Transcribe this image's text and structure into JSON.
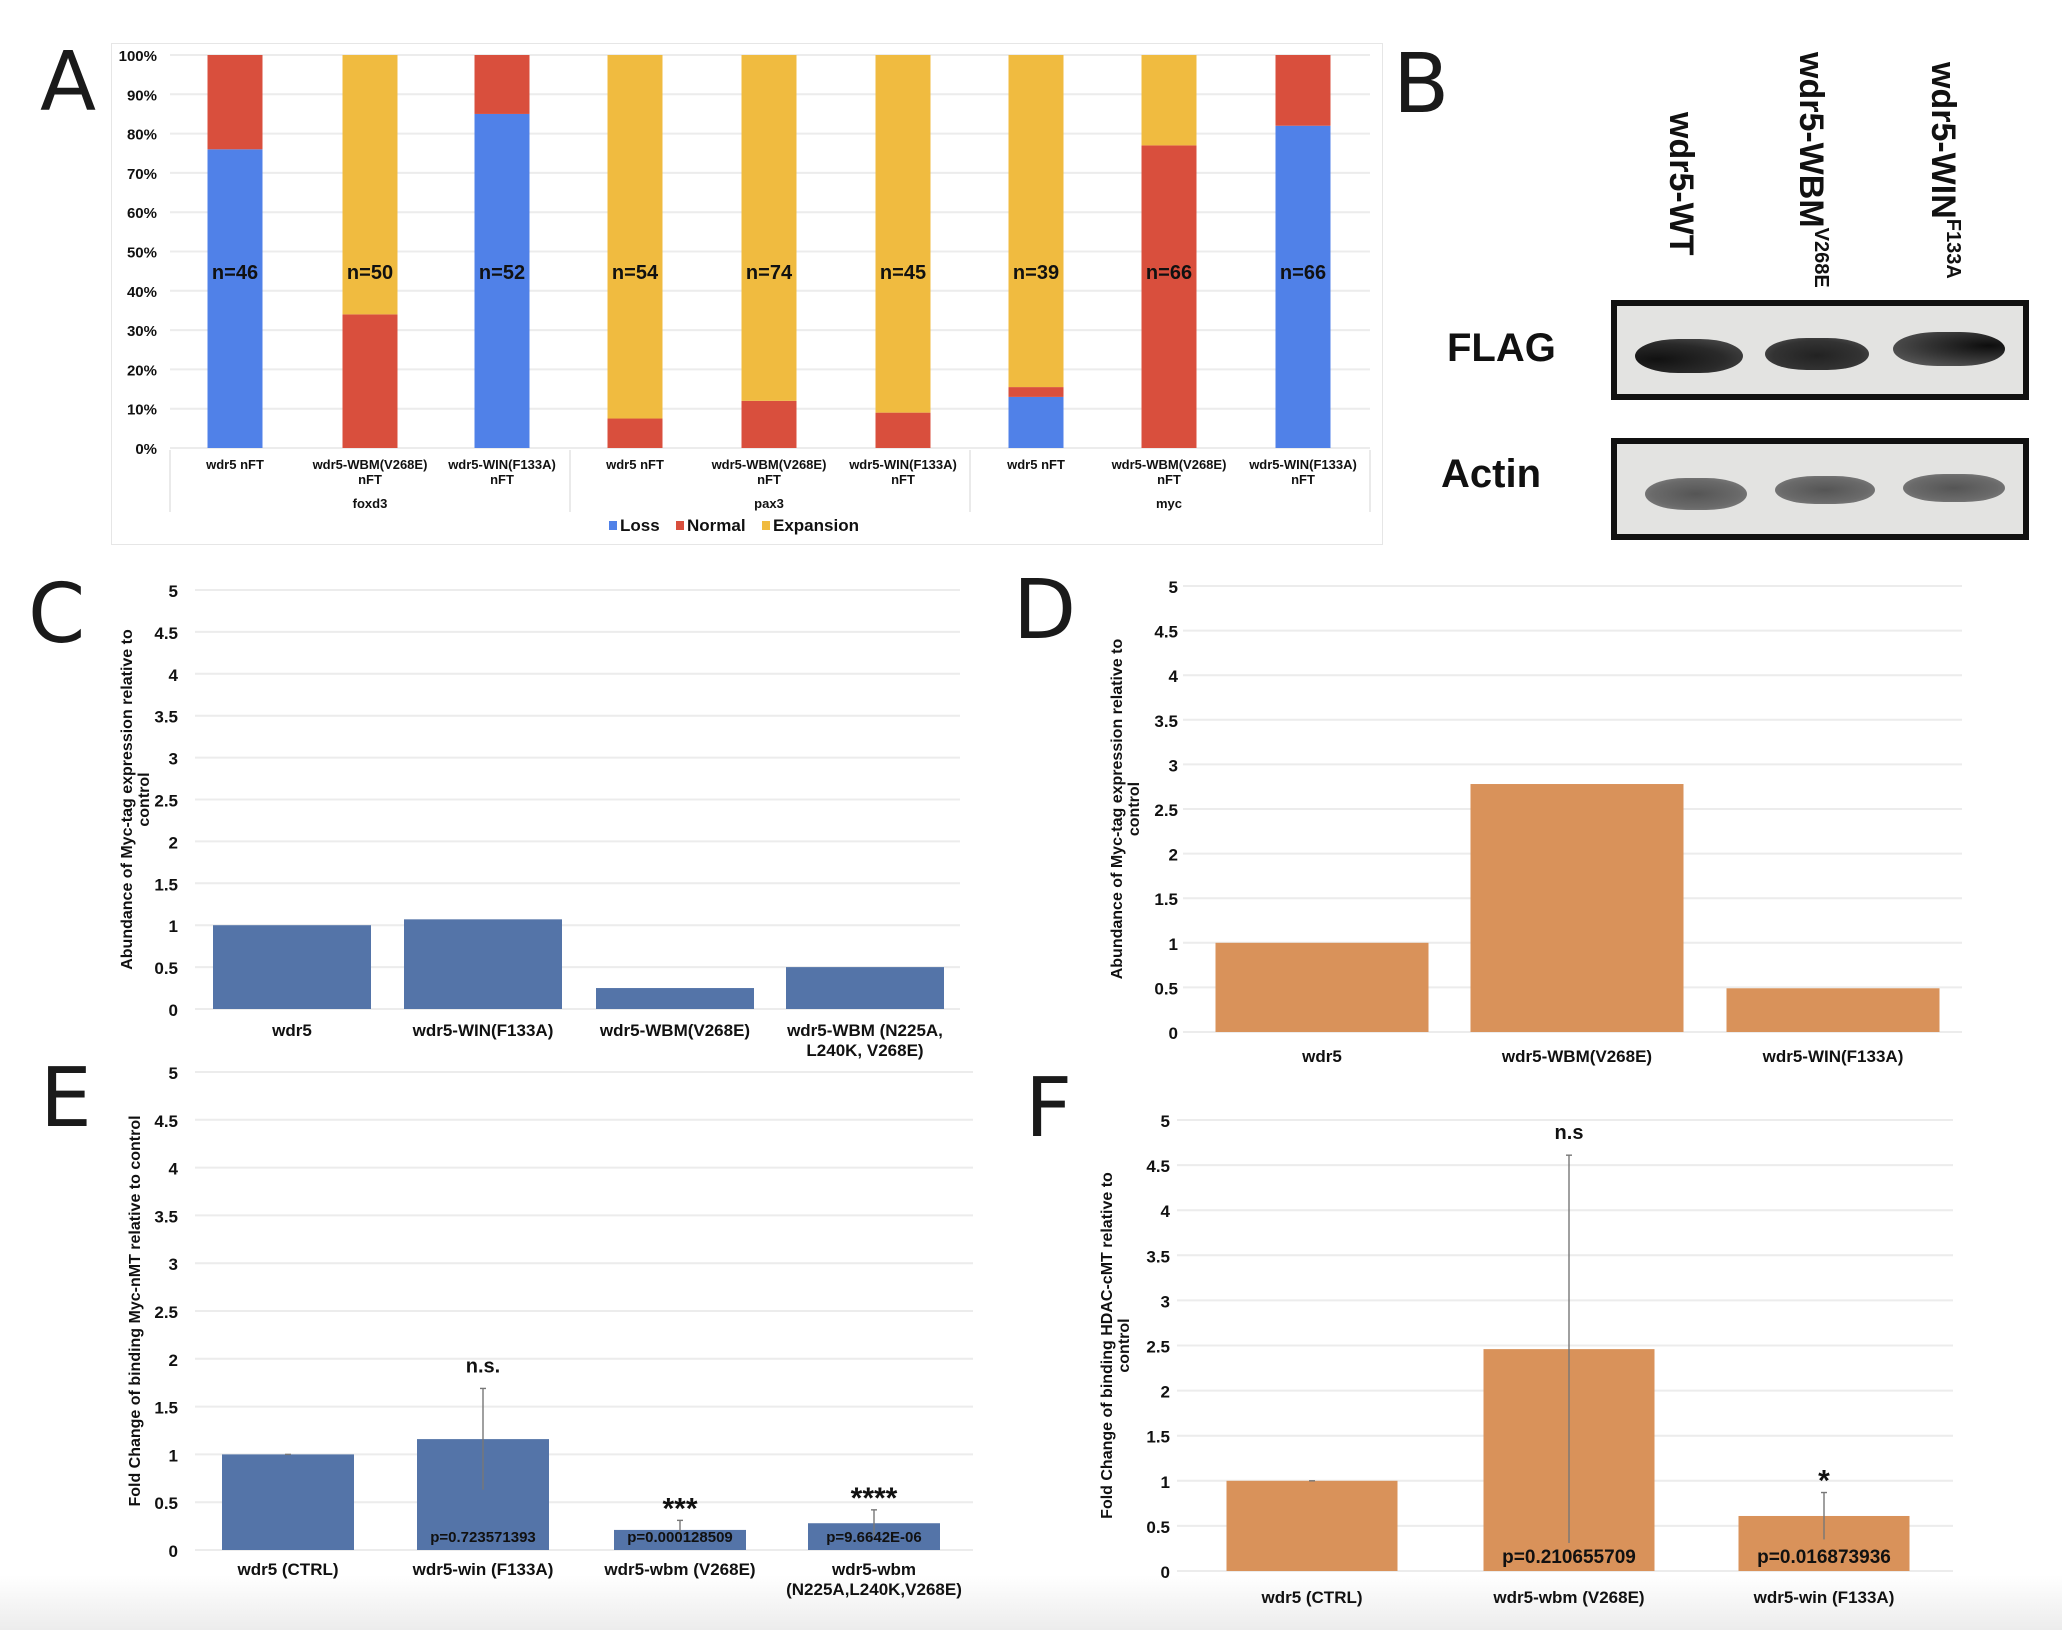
{
  "panels": {
    "A": "A",
    "B": "B",
    "C": "C",
    "D": "D",
    "E": "E",
    "F": "F"
  },
  "chart_data": [
    {
      "id": "A",
      "type": "bar",
      "stacked": true,
      "percent": true,
      "title": "",
      "xlabel": "",
      "ylabel": "",
      "ylim": [
        0,
        100
      ],
      "yticks": [
        "0%",
        "10%",
        "20%",
        "30%",
        "40%",
        "50%",
        "60%",
        "70%",
        "80%",
        "90%",
        "100%"
      ],
      "groups": [
        "foxd3",
        "pax3",
        "myc"
      ],
      "categories": [
        "wdr5 nFT",
        "wdr5-WBM(V268E)\nnFT",
        "wdr5-WIN(F133A)\nnFT",
        "wdr5 nFT",
        "wdr5-WBM(V268E)\nnFT",
        "wdr5-WIN(F133A)\nnFT",
        "wdr5 nFT",
        "wdr5-WBM(V268E)\nnFT",
        "wdr5-WIN(F133A)\nnFT"
      ],
      "series": [
        {
          "name": "Loss",
          "color": "#5081e8",
          "values": [
            76,
            0,
            85,
            0,
            0,
            0,
            13,
            0,
            82
          ]
        },
        {
          "name": "Normal",
          "color": "#d94f3d",
          "values": [
            24,
            34,
            15,
            7.5,
            12,
            9,
            2.5,
            77,
            18
          ]
        },
        {
          "name": "Expansion",
          "color": "#f0bb40",
          "values": [
            0,
            66,
            0,
            92.5,
            88,
            91,
            84.5,
            23,
            0
          ]
        }
      ],
      "annotations": [
        "n=46",
        "n=50",
        "n=52",
        "n=54",
        "n=74",
        "n=45",
        "n=39",
        "n=66",
        "n=66"
      ],
      "legend": {
        "position": "bottom",
        "entries": [
          "Loss",
          "Normal",
          "Expansion"
        ]
      },
      "grid": true
    },
    {
      "id": "C",
      "type": "bar",
      "title": "",
      "xlabel": "",
      "ylabel": "Abundance of Myc-tag expression relative to control",
      "ylim": [
        0,
        5
      ],
      "yticks": [
        "0",
        "0.5",
        "1",
        "1.5",
        "2",
        "2.5",
        "3",
        "3.5",
        "4",
        "4.5",
        "5"
      ],
      "categories": [
        "wdr5",
        "wdr5-WIN(F133A)",
        "wdr5-WBM(V268E)",
        "wdr5-WBM (N225A,\nL240K, V268E)"
      ],
      "values": [
        1.0,
        1.07,
        0.25,
        0.5
      ],
      "color": "#5474a8",
      "grid": true
    },
    {
      "id": "D",
      "type": "bar",
      "title": "",
      "xlabel": "",
      "ylabel": "Abundance of Myc-tag expression relative to control",
      "ylim": [
        0,
        5
      ],
      "yticks": [
        "0",
        "0.5",
        "1",
        "1.5",
        "2",
        "2.5",
        "3",
        "3.5",
        "4",
        "4.5",
        "5"
      ],
      "categories": [
        "wdr5",
        "wdr5-WBM(V268E)",
        "wdr5-WIN(F133A)"
      ],
      "values": [
        1.0,
        2.78,
        0.49
      ],
      "color": "#d9925a",
      "grid": true
    },
    {
      "id": "E",
      "type": "bar",
      "title": "",
      "xlabel": "",
      "ylabel": "Fold Change of binding Myc-nMT relative to control",
      "ylim": [
        0,
        5
      ],
      "yticks": [
        "0",
        "0.5",
        "1",
        "1.5",
        "2",
        "2.5",
        "3",
        "3.5",
        "4",
        "4.5",
        "5"
      ],
      "categories": [
        "wdr5 (CTRL)",
        "wdr5-win (F133A)",
        "wdr5-wbm (V268E)",
        "wdr5-wbm\n(N225A,L240K,V268E)"
      ],
      "values": [
        1.0,
        1.16,
        0.21,
        0.28
      ],
      "error": [
        0.0,
        0.53,
        0.1,
        0.14
      ],
      "pvalues": [
        "",
        "p=0.723571393",
        "p=0.000128509",
        "p=9.6642E-06"
      ],
      "significance": [
        "",
        "n.s.",
        "***",
        "****"
      ],
      "color": "#5474a8",
      "grid": true
    },
    {
      "id": "F",
      "type": "bar",
      "title": "",
      "xlabel": "",
      "ylabel": "Fold Change of binding HDAC-cMT relative to control",
      "ylim": [
        0,
        5
      ],
      "yticks": [
        "0",
        "0.5",
        "1",
        "1.5",
        "2",
        "2.5",
        "3",
        "3.5",
        "4",
        "4.5",
        "5"
      ],
      "categories": [
        "wdr5 (CTRL)",
        "wdr5-wbm (V268E)",
        "wdr5-win (F133A)"
      ],
      "values": [
        1.0,
        2.46,
        0.61
      ],
      "error": [
        0.0,
        2.15,
        0.26
      ],
      "pvalues": [
        "",
        "p=0.210655709",
        "p=0.016873936"
      ],
      "significance": [
        "",
        "n.s",
        "*"
      ],
      "color": "#d9925a",
      "grid": true
    }
  ],
  "western_blot": {
    "lanes": [
      {
        "label": "wdr5-WT",
        "superscript": ""
      },
      {
        "label": "wdr5-WBM",
        "superscript": "V268E"
      },
      {
        "label": "wdr5-WIN",
        "superscript": "F133A"
      }
    ],
    "rows": [
      "FLAG",
      "Actin"
    ]
  }
}
